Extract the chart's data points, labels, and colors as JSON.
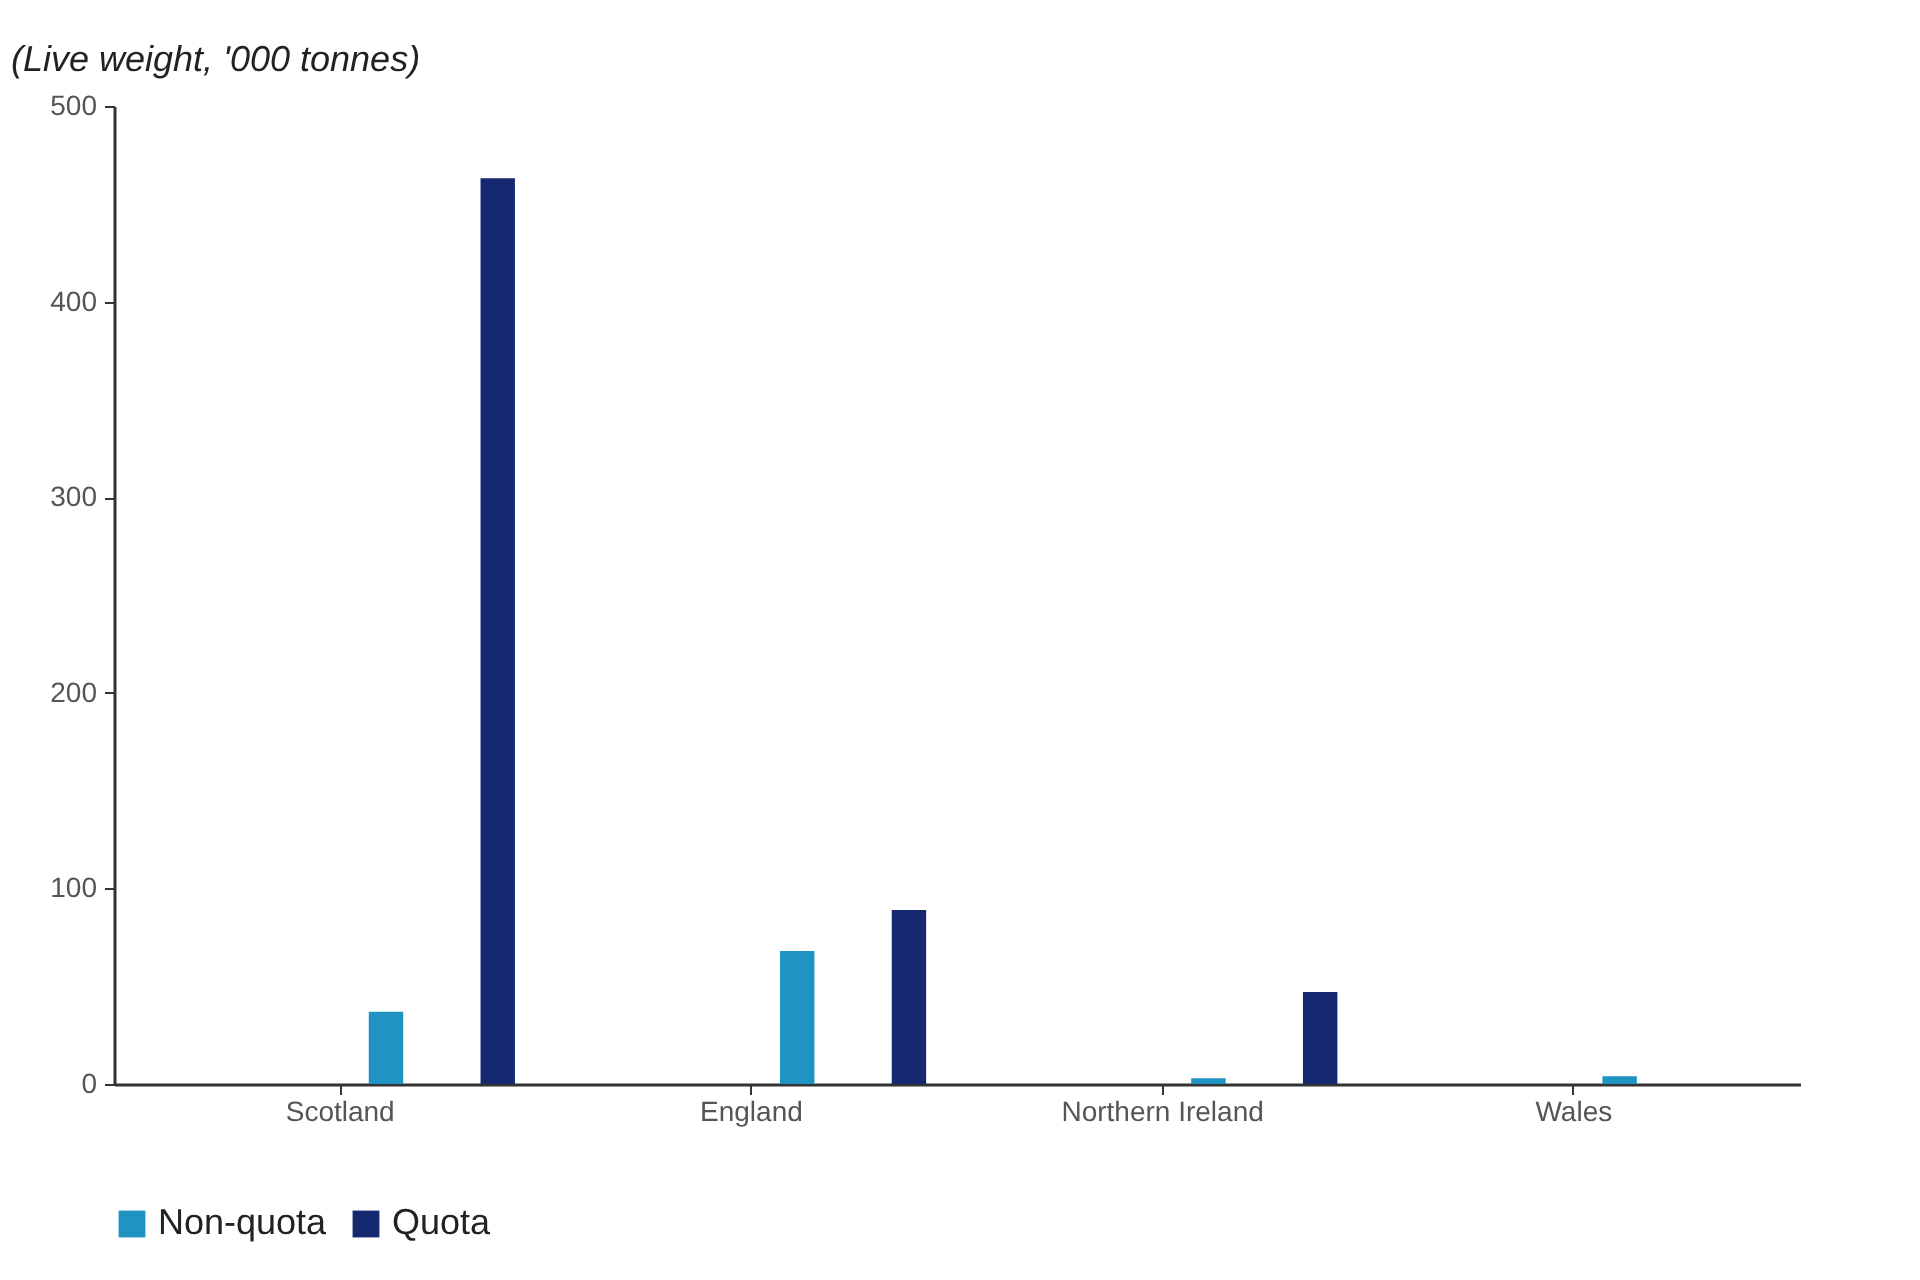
{
  "chart_data": {
    "type": "bar",
    "ylabel": "(Live weight, '000 tonnes)",
    "categories": [
      "Scotland",
      "England",
      "Northern Ireland",
      "Wales"
    ],
    "series": [
      {
        "name": "Non-quota",
        "color": "#1f93c1",
        "values": [
          37,
          68,
          3,
          4
        ]
      },
      {
        "name": "Quota",
        "color": "#152870",
        "values": [
          463,
          89,
          47,
          0
        ]
      }
    ],
    "ylim": [
      0,
      500
    ],
    "yticks": [
      0,
      100,
      200,
      300,
      400,
      500
    ],
    "grid": false,
    "legend": "bottom"
  }
}
